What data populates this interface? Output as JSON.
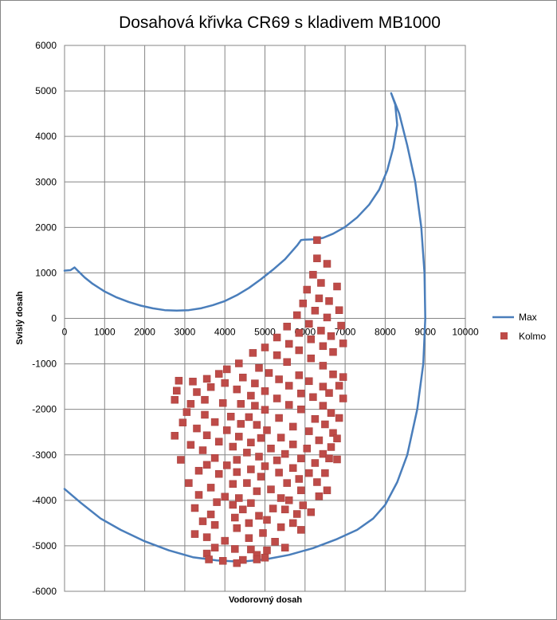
{
  "chart_data": {
    "type": "scatter",
    "title": "Dosahová křivka CR69 s kladivem MB1000",
    "xlabel": "Vodorovný dosah",
    "ylabel": "Svislý dosah",
    "xlim": [
      0,
      10000
    ],
    "ylim": [
      -6000,
      6000
    ],
    "x_ticks": [
      "0",
      "1000",
      "2000",
      "3000",
      "4000",
      "5000",
      "6000",
      "7000",
      "8000",
      "9000",
      "10000"
    ],
    "y_ticks": [
      "6000",
      "5000",
      "4000",
      "3000",
      "2000",
      "1000",
      "0",
      "-1000",
      "-2000",
      "-3000",
      "-4000",
      "-5000",
      "-6000"
    ],
    "grid": true,
    "legend_position": "right",
    "colors": {
      "max": "#4a7ebb",
      "kolmo": "#be4b48"
    },
    "series": [
      {
        "name": "Max",
        "style": "line",
        "points": [
          [
            0,
            1050
          ],
          [
            150,
            1060
          ],
          [
            250,
            1120
          ],
          [
            350,
            1030
          ],
          [
            500,
            900
          ],
          [
            700,
            760
          ],
          [
            1000,
            590
          ],
          [
            1300,
            460
          ],
          [
            1600,
            360
          ],
          [
            1900,
            280
          ],
          [
            2200,
            220
          ],
          [
            2500,
            180
          ],
          [
            2800,
            170
          ],
          [
            3100,
            180
          ],
          [
            3400,
            220
          ],
          [
            3700,
            290
          ],
          [
            4000,
            380
          ],
          [
            4300,
            510
          ],
          [
            4600,
            670
          ],
          [
            4900,
            860
          ],
          [
            5200,
            1070
          ],
          [
            5500,
            1300
          ],
          [
            5800,
            1600
          ],
          [
            5900,
            1720
          ],
          [
            6000,
            1730
          ],
          [
            6250,
            1740
          ],
          [
            6450,
            1770
          ],
          [
            6700,
            1860
          ],
          [
            7000,
            2010
          ],
          [
            7300,
            2220
          ],
          [
            7600,
            2500
          ],
          [
            7850,
            2830
          ],
          [
            8050,
            3250
          ],
          [
            8200,
            3750
          ],
          [
            8300,
            4250
          ],
          [
            8250,
            4700
          ],
          [
            8150,
            4950
          ],
          [
            8350,
            4500
          ],
          [
            8550,
            3800
          ],
          [
            8750,
            3000
          ],
          [
            8900,
            2000
          ],
          [
            8980,
            1000
          ],
          [
            9000,
            0
          ],
          [
            8950,
            -1000
          ],
          [
            8800,
            -2000
          ],
          [
            8550,
            -3000
          ],
          [
            8300,
            -3600
          ],
          [
            8000,
            -4100
          ],
          [
            7700,
            -4400
          ],
          [
            7300,
            -4650
          ],
          [
            6800,
            -4850
          ],
          [
            6200,
            -5050
          ],
          [
            5600,
            -5200
          ],
          [
            5000,
            -5300
          ],
          [
            4400,
            -5350
          ],
          [
            3800,
            -5320
          ],
          [
            3200,
            -5250
          ],
          [
            2600,
            -5100
          ],
          [
            2000,
            -4900
          ],
          [
            1400,
            -4650
          ],
          [
            900,
            -4400
          ],
          [
            400,
            -4050
          ],
          [
            0,
            -3750
          ]
        ]
      },
      {
        "name": "Kolmo",
        "style": "markers",
        "points": [
          [
            6300,
            1720
          ],
          [
            6300,
            1320
          ],
          [
            6550,
            1200
          ],
          [
            6200,
            960
          ],
          [
            6400,
            780
          ],
          [
            6800,
            700
          ],
          [
            6050,
            630
          ],
          [
            6350,
            440
          ],
          [
            6600,
            380
          ],
          [
            5950,
            330
          ],
          [
            6850,
            180
          ],
          [
            6250,
            170
          ],
          [
            5800,
            70
          ],
          [
            6550,
            20
          ],
          [
            6100,
            -120
          ],
          [
            5550,
            -180
          ],
          [
            6900,
            -160
          ],
          [
            6400,
            -270
          ],
          [
            5850,
            -320
          ],
          [
            6650,
            -390
          ],
          [
            5300,
            -420
          ],
          [
            6150,
            -460
          ],
          [
            5600,
            -560
          ],
          [
            6950,
            -550
          ],
          [
            6450,
            -610
          ],
          [
            5000,
            -640
          ],
          [
            5850,
            -700
          ],
          [
            6700,
            -740
          ],
          [
            4700,
            -760
          ],
          [
            5300,
            -810
          ],
          [
            6150,
            -880
          ],
          [
            4350,
            -990
          ],
          [
            5550,
            -960
          ],
          [
            6450,
            -1040
          ],
          [
            4050,
            -1120
          ],
          [
            4850,
            -1090
          ],
          [
            6950,
            -1290
          ],
          [
            3850,
            -1220
          ],
          [
            5100,
            -1200
          ],
          [
            5850,
            -1250
          ],
          [
            6700,
            -1230
          ],
          [
            3550,
            -1330
          ],
          [
            4450,
            -1300
          ],
          [
            5350,
            -1340
          ],
          [
            6100,
            -1380
          ],
          [
            2850,
            -1370
          ],
          [
            3200,
            -1390
          ],
          [
            4000,
            -1420
          ],
          [
            4750,
            -1430
          ],
          [
            5600,
            -1480
          ],
          [
            6450,
            -1500
          ],
          [
            6850,
            -1480
          ],
          [
            3650,
            -1510
          ],
          [
            4300,
            -1560
          ],
          [
            5000,
            -1600
          ],
          [
            5900,
            -1650
          ],
          [
            6600,
            -1640
          ],
          [
            2800,
            -1590
          ],
          [
            3300,
            -1620
          ],
          [
            4650,
            -1700
          ],
          [
            5300,
            -1760
          ],
          [
            6200,
            -1730
          ],
          [
            6950,
            -1760
          ],
          [
            2750,
            -1790
          ],
          [
            3500,
            -1790
          ],
          [
            3950,
            -1860
          ],
          [
            4400,
            -1880
          ],
          [
            5600,
            -1900
          ],
          [
            6450,
            -1920
          ],
          [
            3150,
            -1880
          ],
          [
            4750,
            -1920
          ],
          [
            5000,
            -2010
          ],
          [
            5900,
            -2000
          ],
          [
            6650,
            -2080
          ],
          [
            3050,
            -2060
          ],
          [
            3500,
            -2120
          ],
          [
            4150,
            -2160
          ],
          [
            4600,
            -2170
          ],
          [
            5350,
            -2190
          ],
          [
            6250,
            -2210
          ],
          [
            6850,
            -2190
          ],
          [
            2950,
            -2290
          ],
          [
            3750,
            -2280
          ],
          [
            4400,
            -2320
          ],
          [
            4800,
            -2340
          ],
          [
            5700,
            -2380
          ],
          [
            6500,
            -2330
          ],
          [
            3300,
            -2420
          ],
          [
            4050,
            -2460
          ],
          [
            5050,
            -2460
          ],
          [
            6100,
            -2480
          ],
          [
            6700,
            -2520
          ],
          [
            2750,
            -2580
          ],
          [
            3550,
            -2570
          ],
          [
            4350,
            -2600
          ],
          [
            4900,
            -2630
          ],
          [
            5400,
            -2620
          ],
          [
            6350,
            -2680
          ],
          [
            6800,
            -2640
          ],
          [
            3850,
            -2710
          ],
          [
            4650,
            -2730
          ],
          [
            5700,
            -2770
          ],
          [
            3150,
            -2780
          ],
          [
            4200,
            -2820
          ],
          [
            5150,
            -2860
          ],
          [
            6050,
            -2860
          ],
          [
            6650,
            -2830
          ],
          [
            3450,
            -2900
          ],
          [
            4550,
            -2950
          ],
          [
            5500,
            -2980
          ],
          [
            6450,
            -2980
          ],
          [
            4850,
            -3040
          ],
          [
            3750,
            -3070
          ],
          [
            5900,
            -3080
          ],
          [
            2900,
            -3110
          ],
          [
            4300,
            -3110
          ],
          [
            5300,
            -3120
          ],
          [
            6600,
            -3080
          ],
          [
            6250,
            -3180
          ],
          [
            3550,
            -3220
          ],
          [
            4050,
            -3230
          ],
          [
            5000,
            -3250
          ],
          [
            5700,
            -3290
          ],
          [
            6800,
            -3100
          ],
          [
            4650,
            -3320
          ],
          [
            3350,
            -3350
          ],
          [
            4300,
            -3380
          ],
          [
            5350,
            -3390
          ],
          [
            6100,
            -3400
          ],
          [
            6500,
            -3400
          ],
          [
            3850,
            -3420
          ],
          [
            4900,
            -3480
          ],
          [
            5850,
            -3530
          ],
          [
            3100,
            -3620
          ],
          [
            4200,
            -3640
          ],
          [
            4550,
            -3620
          ],
          [
            5550,
            -3620
          ],
          [
            6300,
            -3600
          ],
          [
            3650,
            -3720
          ],
          [
            5150,
            -3760
          ],
          [
            4800,
            -3800
          ],
          [
            5900,
            -3780
          ],
          [
            6550,
            -3780
          ],
          [
            3350,
            -3880
          ],
          [
            4000,
            -3920
          ],
          [
            4350,
            -3950
          ],
          [
            6350,
            -3910
          ],
          [
            5400,
            -3950
          ],
          [
            5600,
            -4000
          ],
          [
            3800,
            -4040
          ],
          [
            4650,
            -4060
          ],
          [
            5950,
            -4110
          ],
          [
            4200,
            -4100
          ],
          [
            3250,
            -4170
          ],
          [
            5200,
            -4180
          ],
          [
            4450,
            -4200
          ],
          [
            5500,
            -4200
          ],
          [
            6150,
            -4260
          ],
          [
            3650,
            -4310
          ],
          [
            4850,
            -4340
          ],
          [
            5800,
            -4300
          ],
          [
            4250,
            -4380
          ],
          [
            3450,
            -4460
          ],
          [
            5050,
            -4430
          ],
          [
            4600,
            -4500
          ],
          [
            5700,
            -4500
          ],
          [
            3750,
            -4540
          ],
          [
            5400,
            -4590
          ],
          [
            4300,
            -4610
          ],
          [
            5900,
            -4650
          ],
          [
            3250,
            -4740
          ],
          [
            4950,
            -4720
          ],
          [
            3550,
            -4810
          ],
          [
            4600,
            -4830
          ],
          [
            4000,
            -4890
          ],
          [
            5250,
            -4910
          ],
          [
            3750,
            -5040
          ],
          [
            4250,
            -5070
          ],
          [
            4650,
            -5080
          ],
          [
            5500,
            -5040
          ],
          [
            3550,
            -5170
          ],
          [
            4800,
            -5200
          ],
          [
            5050,
            -5100
          ],
          [
            3600,
            -5300
          ],
          [
            4450,
            -5310
          ],
          [
            3950,
            -5330
          ],
          [
            4800,
            -5300
          ],
          [
            5000,
            -5260
          ],
          [
            4300,
            -5380
          ]
        ]
      }
    ]
  }
}
